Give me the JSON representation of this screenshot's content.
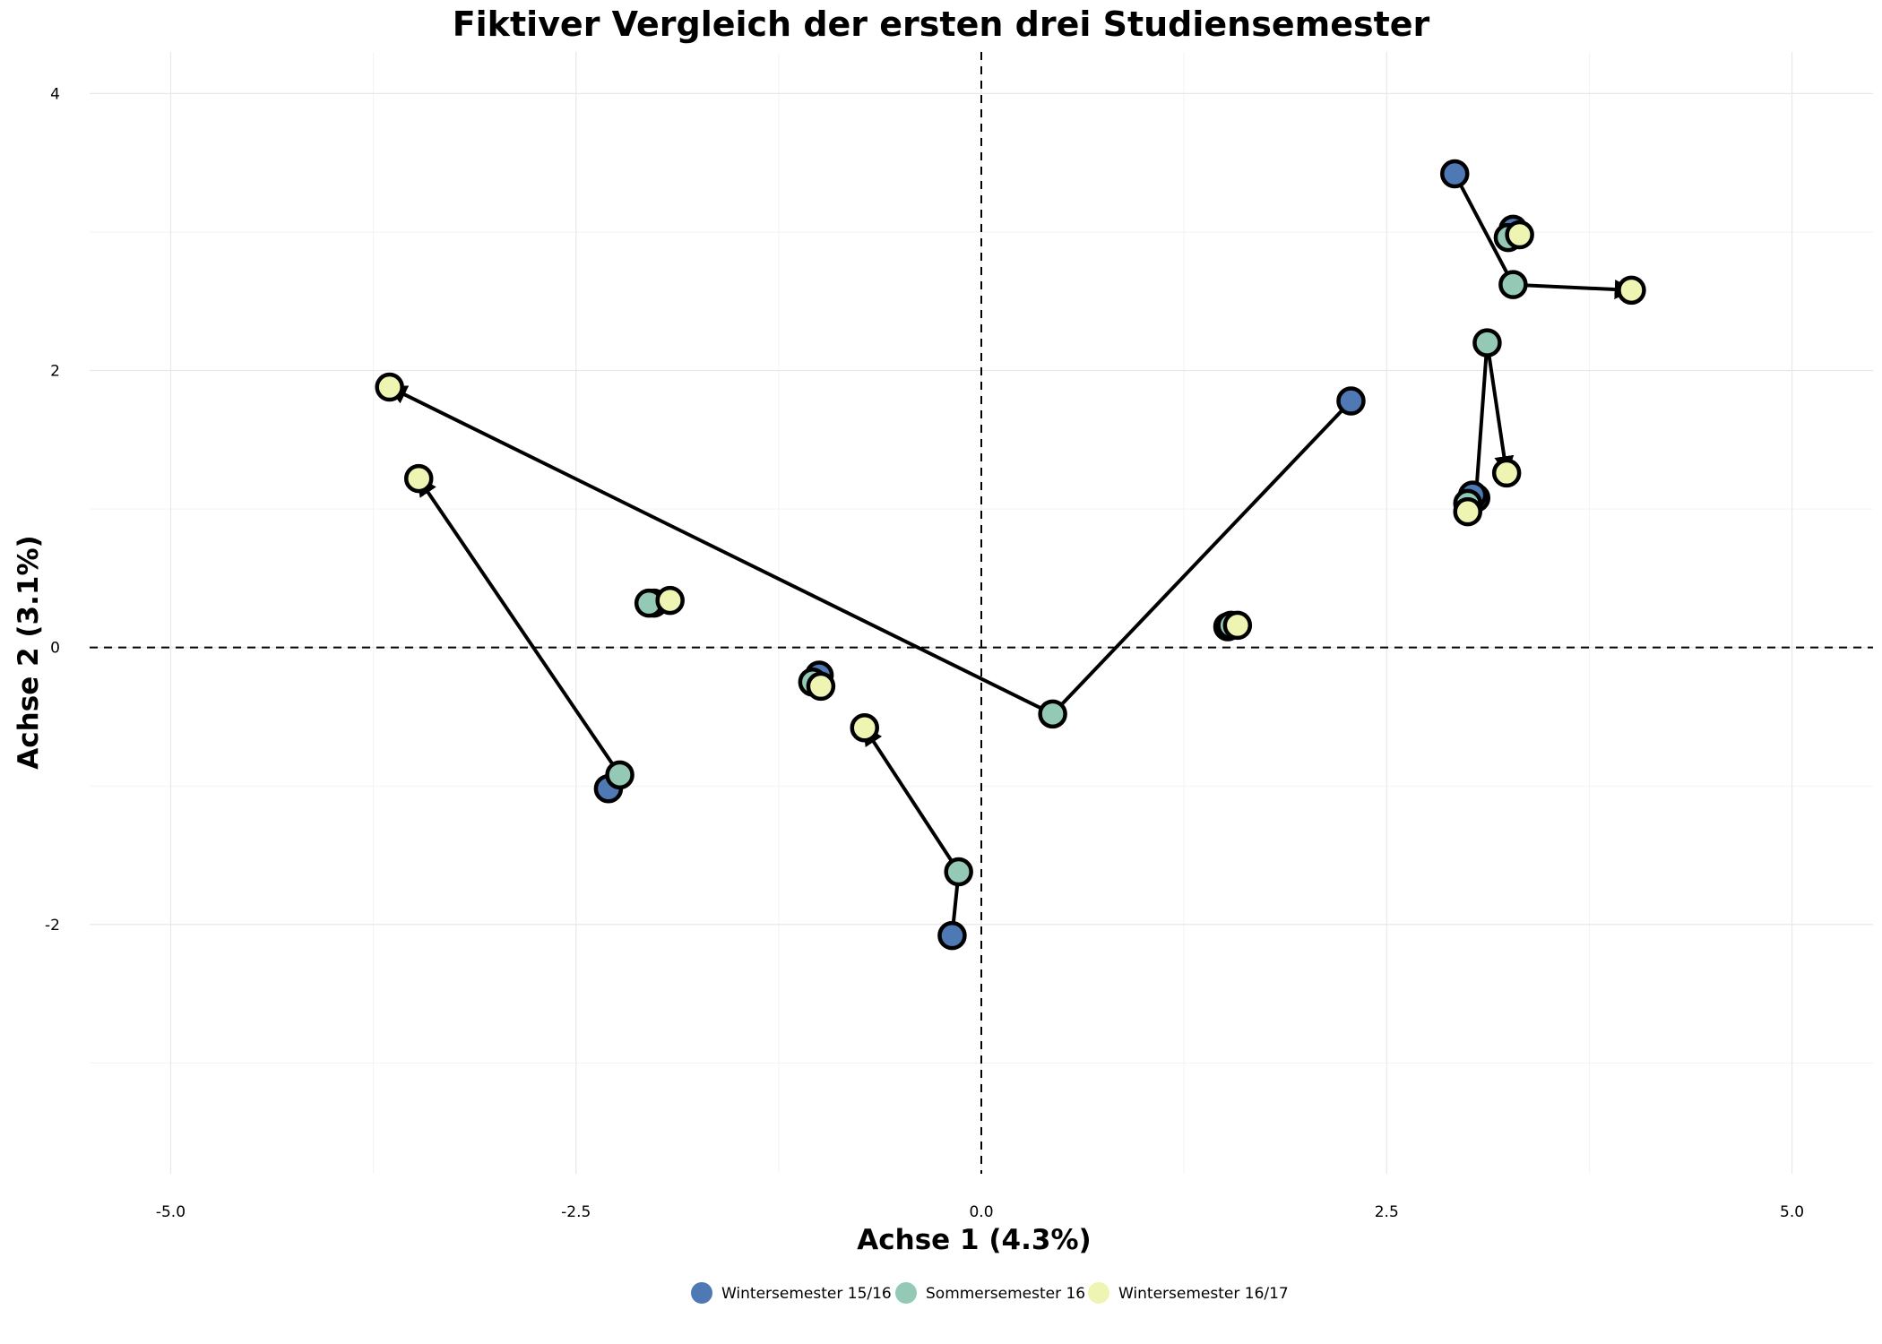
{
  "chart_data": {
    "type": "scatter",
    "title": "Fiktiver Vergleich der ersten drei Studiensemester",
    "xlabel": "Achse 1 (4.3%)",
    "ylabel": "Achse 2 (3.1%)",
    "xlim": [
      -5.5,
      5.5
    ],
    "ylim": [
      -3.8,
      4.3
    ],
    "xticks": [
      -5.0,
      -2.5,
      0.0,
      2.5,
      5.0
    ],
    "xtick_labels": [
      "-5.0",
      "-2.5",
      "0.0",
      "2.5",
      "5.0"
    ],
    "yticks": [
      -2,
      0,
      2,
      4
    ],
    "ytick_labels": [
      "-2",
      "0",
      "2",
      "4"
    ],
    "reference_lines": {
      "x": 0,
      "y": 0
    },
    "legend_position": "bottom",
    "series": [
      {
        "name": "Wintersemester 15/16",
        "color": "#4e79b4"
      },
      {
        "name": "Sommersemester 16",
        "color": "#94cab5"
      },
      {
        "name": "Wintersemester 16/17",
        "color": "#eef5b3"
      }
    ],
    "trajectories": [
      {
        "points": [
          [
            2.92,
            3.42
          ],
          [
            3.28,
            2.62
          ],
          [
            4.01,
            2.58
          ]
        ]
      },
      {
        "points": [
          [
            2.28,
            1.78
          ],
          [
            0.44,
            -0.48
          ],
          [
            -3.65,
            1.88
          ]
        ]
      },
      {
        "points": [
          [
            -2.3,
            -1.02
          ],
          [
            -2.23,
            -0.92
          ],
          [
            -3.47,
            1.22
          ]
        ]
      },
      {
        "points": [
          [
            -0.18,
            -2.08
          ],
          [
            -0.14,
            -1.62
          ],
          [
            -0.72,
            -0.58
          ]
        ]
      },
      {
        "points": [
          [
            3.05,
            1.08
          ],
          [
            3.12,
            2.2
          ],
          [
            3.24,
            1.26
          ]
        ]
      },
      {
        "points": [
          [
            3.28,
            3.02
          ],
          [
            3.25,
            2.96
          ],
          [
            3.32,
            2.98
          ]
        ]
      },
      {
        "points": [
          [
            -1.0,
            -0.2
          ],
          [
            -1.04,
            -0.25
          ],
          [
            -0.99,
            -0.28
          ]
        ]
      },
      {
        "points": [
          [
            -2.02,
            0.32
          ],
          [
            -2.05,
            0.32
          ],
          [
            -1.92,
            0.34
          ]
        ]
      },
      {
        "points": [
          [
            1.52,
            0.15
          ],
          [
            1.54,
            0.16
          ],
          [
            1.58,
            0.16
          ]
        ]
      },
      {
        "points": [
          [
            3.03,
            1.1
          ],
          [
            3.0,
            1.04
          ],
          [
            3.0,
            0.98
          ]
        ]
      }
    ]
  }
}
